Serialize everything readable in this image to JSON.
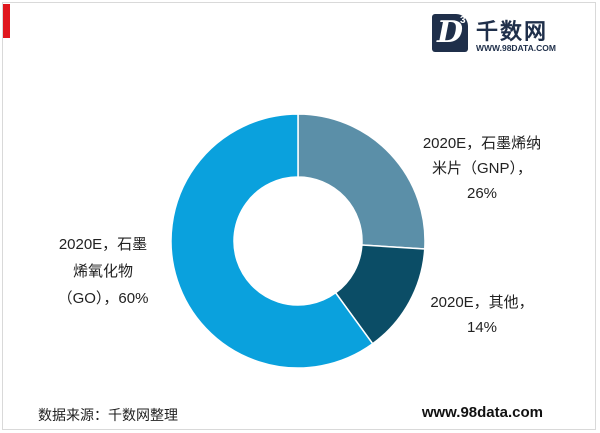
{
  "header": {
    "logo_mark": "D",
    "logo_mark_sup": "3",
    "logo_name": "千数网",
    "logo_url": "WWW.98DATA.COM"
  },
  "chart_data": {
    "type": "pie",
    "donut": true,
    "labels": [
      [
        "2020E，石墨烯纳",
        "米片（GNP），",
        "26%"
      ],
      [
        "2020E，其他，",
        "14%"
      ],
      [
        "2020E，石墨",
        "烯氧化物",
        "（GO），60%"
      ]
    ],
    "values": [
      26,
      14,
      60
    ],
    "colors": [
      "#5b8fa8",
      "#0b4d66",
      "#0aa1dd"
    ]
  },
  "footer": {
    "source": "数据来源：千数网整理",
    "site": "www.98data.com"
  }
}
